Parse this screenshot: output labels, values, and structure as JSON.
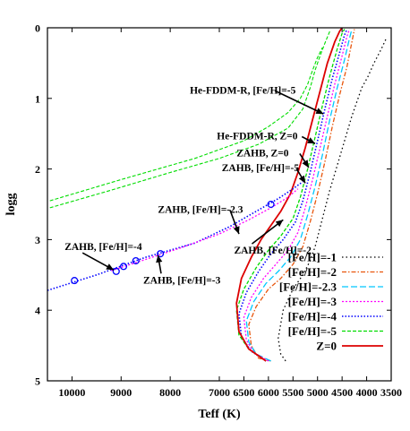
{
  "chart_data": {
    "type": "line",
    "xlabel": "Teff (K)",
    "ylabel": "logg",
    "xlim": [
      10500,
      3500
    ],
    "ylim": [
      5,
      0
    ],
    "xticks": [
      {
        "v": 10000,
        "label": "10000"
      },
      {
        "v": 9000,
        "label": "9000"
      },
      {
        "v": 8000,
        "label": "8000"
      },
      {
        "v": 7000,
        "label": "7000"
      },
      {
        "v": 6500,
        "label": "6500"
      },
      {
        "v": 6000,
        "label": "6000"
      },
      {
        "v": 5500,
        "label": "5500"
      },
      {
        "v": 5000,
        "label": "5000"
      },
      {
        "v": 4500,
        "label": "4500"
      },
      {
        "v": 4000,
        "label": "4000"
      },
      {
        "v": 3500,
        "label": "3500"
      }
    ],
    "yticks": [
      {
        "v": 0,
        "label": "0"
      },
      {
        "v": 1,
        "label": "1"
      },
      {
        "v": 2,
        "label": "2"
      },
      {
        "v": 3,
        "label": "3"
      },
      {
        "v": 4,
        "label": "4"
      },
      {
        "v": 5,
        "label": "5"
      }
    ],
    "series": [
      {
        "name": "[Fe/H]=-1",
        "color": "#000000",
        "dash": "1.5,3",
        "width": 1.3,
        "x": [
          5650,
          5750,
          5800,
          5700,
          5500,
          5300,
          5150,
          5050,
          4900,
          4750,
          4600,
          4450,
          4300,
          4200,
          4100,
          3980,
          3850,
          3700,
          3600
        ],
        "y": [
          4.72,
          4.62,
          4.4,
          4.0,
          3.7,
          3.5,
          3.3,
          3.1,
          2.7,
          2.3,
          1.95,
          1.6,
          1.25,
          1.05,
          0.85,
          0.7,
          0.5,
          0.3,
          0.15
        ]
      },
      {
        "name": "[Fe/H]=-2",
        "color": "#e8560c",
        "dash": "5,2,1.5,2",
        "width": 1.3,
        "x": [
          5950,
          6200,
          6350,
          6400,
          6250,
          6000,
          5750,
          5500,
          5300,
          5150,
          5000,
          4850,
          4700,
          4550,
          4400,
          4300,
          4250
        ],
        "y": [
          4.72,
          4.68,
          4.5,
          4.2,
          3.95,
          3.7,
          3.55,
          3.35,
          3.1,
          2.75,
          2.35,
          1.9,
          1.4,
          0.95,
          0.55,
          0.2,
          0.02
        ]
      },
      {
        "name": "[Fe/H]=-2.3",
        "color": "#00c8ff",
        "dash": "7,3",
        "width": 1.3,
        "x": [
          5950,
          6250,
          6400,
          6450,
          6300,
          6050,
          5800,
          5550,
          5350,
          5200,
          5050,
          4900,
          4750,
          4600,
          4450,
          4350,
          4300
        ],
        "y": [
          4.72,
          4.62,
          4.45,
          4.15,
          3.88,
          3.62,
          3.45,
          3.25,
          3.0,
          2.65,
          2.25,
          1.8,
          1.3,
          0.85,
          0.45,
          0.15,
          0.02
        ]
      },
      {
        "name": "[Fe/H]=-3",
        "color": "#ff00ff",
        "dash": "2,2",
        "width": 1.3,
        "x": [
          6000,
          6300,
          6450,
          6500,
          6350,
          6100,
          5850,
          5600,
          5400,
          5250,
          5100,
          4950,
          4800,
          4650,
          4500,
          4400,
          4350
        ],
        "y": [
          4.72,
          4.6,
          4.42,
          4.1,
          3.82,
          3.55,
          3.35,
          3.15,
          2.9,
          2.55,
          2.15,
          1.7,
          1.25,
          0.8,
          0.4,
          0.12,
          0.02
        ]
      },
      {
        "name": "[Fe/H]=-4",
        "color": "#0000ff",
        "dash": "1.5,2",
        "width": 1.6,
        "x": [
          6050,
          6350,
          6550,
          6600,
          6450,
          6200,
          5950,
          5700,
          5450,
          5300,
          5150,
          5000,
          4850,
          4700,
          4550,
          4450,
          4400
        ],
        "y": [
          4.72,
          4.58,
          4.38,
          4.05,
          3.75,
          3.45,
          3.2,
          3.0,
          2.75,
          2.45,
          2.05,
          1.6,
          1.15,
          0.72,
          0.35,
          0.1,
          0.02
        ]
      },
      {
        "name": "[Fe/H]=-5",
        "color": "#00dd00",
        "dash": "4,2",
        "width": 1.3,
        "x": [
          6050,
          6400,
          6600,
          6650,
          6500,
          6250,
          6000,
          5750,
          5500,
          5350,
          5200,
          5050,
          4900,
          4750,
          4600,
          4500,
          4450
        ],
        "y": [
          4.72,
          4.55,
          4.35,
          4.0,
          3.7,
          3.4,
          3.15,
          2.95,
          2.7,
          2.4,
          2.0,
          1.55,
          1.1,
          0.68,
          0.3,
          0.08,
          0.02
        ]
      },
      {
        "name": "Z=0",
        "color": "#dd0000",
        "dash": "",
        "width": 1.8,
        "x": [
          6050,
          6400,
          6600,
          6650,
          6550,
          6350,
          6150,
          5950,
          5750,
          5550,
          5400,
          5250,
          5100,
          4950,
          4800,
          4650,
          4550,
          4500
        ],
        "y": [
          4.72,
          4.55,
          4.3,
          3.9,
          3.55,
          3.25,
          3.0,
          2.8,
          2.6,
          2.35,
          2.05,
          1.7,
          1.3,
          0.9,
          0.5,
          0.2,
          0.05,
          0.0
        ]
      },
      {
        "name": "",
        "color": "#00dd00",
        "dash": "4,2",
        "width": 1.1,
        "x": [
          10450,
          9200,
          8000,
          7000,
          6200,
          5600,
          5300,
          5150,
          5050,
          4950,
          4850,
          4750
        ],
        "y": [
          2.55,
          2.3,
          2.05,
          1.85,
          1.65,
          1.42,
          1.15,
          0.85,
          0.6,
          0.4,
          0.22,
          0.05
        ]
      },
      {
        "name": "",
        "color": "#00dd00",
        "dash": "4,2",
        "width": 1.1,
        "x": [
          10450,
          9000,
          7500,
          6500,
          6000,
          5600,
          5350,
          5200,
          5100,
          5000,
          4900
        ],
        "y": [
          2.45,
          2.15,
          1.85,
          1.6,
          1.4,
          1.2,
          1.0,
          0.8,
          0.6,
          0.42,
          0.28
        ]
      },
      {
        "name": "",
        "color": "#0000ff",
        "dash": "1.5,2",
        "width": 1.6,
        "x": [
          10500,
          9500,
          8500,
          7500,
          6800,
          6200,
          5800,
          5500,
          5300
        ],
        "y": [
          3.72,
          3.5,
          3.25,
          3.05,
          2.82,
          2.58,
          2.42,
          2.28,
          2.18
        ]
      },
      {
        "name": "",
        "color": "#ff00ff",
        "dash": "2,2",
        "width": 1.3,
        "x": [
          9200,
          8500,
          7800,
          7000,
          6400,
          5950,
          5600,
          5400
        ],
        "y": [
          3.44,
          3.28,
          3.12,
          2.92,
          2.72,
          2.55,
          2.4,
          2.28
        ]
      }
    ],
    "circles": [
      {
        "x": 9950,
        "y": 3.58
      },
      {
        "x": 9100,
        "y": 3.45
      },
      {
        "x": 8950,
        "y": 3.38
      },
      {
        "x": 8700,
        "y": 3.3
      },
      {
        "x": 8200,
        "y": 3.2
      },
      {
        "x": 5950,
        "y": 2.5
      }
    ],
    "annotations": [
      {
        "text": "He-FDDM-R, [Fe/H]=-5",
        "x": 7600,
        "y": 0.93,
        "ax": 4880,
        "ay": 1.22
      },
      {
        "text": "He-FDDM-R, Z=0",
        "x": 7050,
        "y": 1.58,
        "ax": 5050,
        "ay": 1.64
      },
      {
        "text": "ZAHB, Z=0",
        "x": 6650,
        "y": 1.82,
        "ax": 5180,
        "ay": 1.98
      },
      {
        "text": "ZAHB, [Fe/H]=-5",
        "x": 6950,
        "y": 2.03,
        "ax": 5250,
        "ay": 2.2
      },
      {
        "text": "ZAHB, [Fe/H]=-2.3",
        "x": 8250,
        "y": 2.62,
        "ax": 6600,
        "ay": 2.92
      },
      {
        "text": "ZAHB, [Fe/H]=-2",
        "x": 6700,
        "y": 3.2,
        "ax": 5700,
        "ay": 2.72
      },
      {
        "text": "ZAHB, [Fe/H]=-4",
        "x": 10150,
        "y": 3.15,
        "ax": 9150,
        "ay": 3.43
      },
      {
        "text": "ZAHB, [Fe/H]=-3",
        "x": 8550,
        "y": 3.62,
        "ax": 8250,
        "ay": 3.22
      }
    ],
    "grid": false,
    "legend": {
      "position": "bottom-right"
    }
  }
}
